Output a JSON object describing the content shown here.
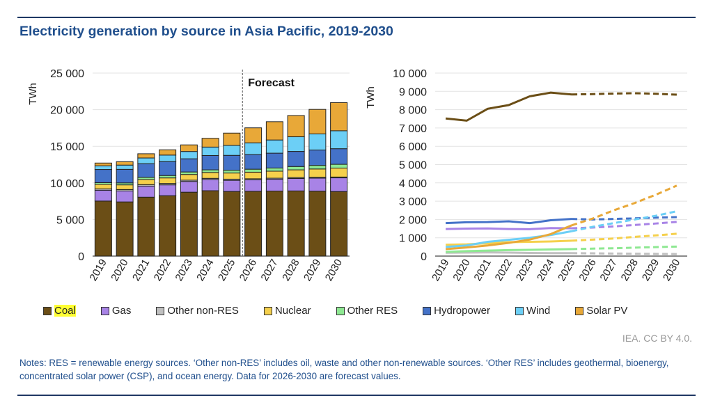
{
  "title": "Electricity generation by source in Asia Pacific, 2019-2030",
  "credit": "IEA. CC BY 4.0.",
  "notes": "Notes: RES = renewable energy sources. ‘Other non-RES’ includes oil, waste and other non-renewable sources. ‘Other RES’ includes geothermal, bioenergy, concentrated solar power (CSP), and ocean energy. Data for 2026-2030 are forecast values.",
  "chart_data": [
    {
      "type": "bar",
      "stacked": true,
      "ylabel": "TWh",
      "ylim": [
        0,
        25000
      ],
      "yticks": [
        "0",
        "5 000",
        "10 000",
        "15 000",
        "20 000",
        "25 000"
      ],
      "annotation": "Forecast",
      "forecast_from": "2026",
      "categories": [
        "2019",
        "2020",
        "2021",
        "2022",
        "2023",
        "2024",
        "2025",
        "2026",
        "2027",
        "2028",
        "2029",
        "2030"
      ],
      "series_ref": "shared"
    },
    {
      "type": "line",
      "ylabel": "TWh",
      "ylim": [
        0,
        10000
      ],
      "yticks": [
        "0",
        "1 000",
        "2 000",
        "3 000",
        "4 000",
        "5 000",
        "6 000",
        "7 000",
        "8 000",
        "9 000",
        "10 000"
      ],
      "forecast_dashed_from": "2025",
      "categories": [
        "2019",
        "2020",
        "2021",
        "2022",
        "2023",
        "2024",
        "2025",
        "2026",
        "2027",
        "2028",
        "2029",
        "2030"
      ],
      "series_ref": "shared"
    }
  ],
  "series": [
    {
      "name": "Coal",
      "color": "#6b4e16",
      "values": [
        7520,
        7400,
        8050,
        8250,
        8730,
        8930,
        8830,
        8850,
        8880,
        8900,
        8870,
        8820
      ]
    },
    {
      "name": "Gas",
      "color": "#a883e6",
      "values": [
        1480,
        1500,
        1510,
        1480,
        1470,
        1530,
        1520,
        1560,
        1620,
        1700,
        1780,
        1870
      ]
    },
    {
      "name": "Other non-RES",
      "color": "#c0c0c0",
      "values": [
        180,
        190,
        200,
        190,
        170,
        160,
        160,
        150,
        140,
        130,
        120,
        110
      ]
    },
    {
      "name": "Nuclear",
      "color": "#f5d04c",
      "values": [
        620,
        640,
        700,
        760,
        780,
        800,
        840,
        900,
        960,
        1050,
        1130,
        1220
      ]
    },
    {
      "name": "Other RES",
      "color": "#8ee892",
      "values": [
        230,
        270,
        300,
        330,
        340,
        360,
        380,
        410,
        430,
        460,
        490,
        520
      ]
    },
    {
      "name": "Hydropower",
      "color": "#4472c8",
      "values": [
        1800,
        1850,
        1860,
        1900,
        1800,
        1960,
        2030,
        2000,
        2030,
        2060,
        2100,
        2130
      ]
    },
    {
      "name": "Wind",
      "color": "#6ccff6",
      "values": [
        500,
        580,
        780,
        890,
        1000,
        1150,
        1360,
        1600,
        1800,
        2000,
        2200,
        2450
      ]
    },
    {
      "name": "Solar PV",
      "color": "#e8a838",
      "values": [
        380,
        470,
        580,
        720,
        900,
        1200,
        1680,
        2050,
        2500,
        2900,
        3350,
        3850
      ]
    }
  ],
  "legend_highlight": "Coal"
}
